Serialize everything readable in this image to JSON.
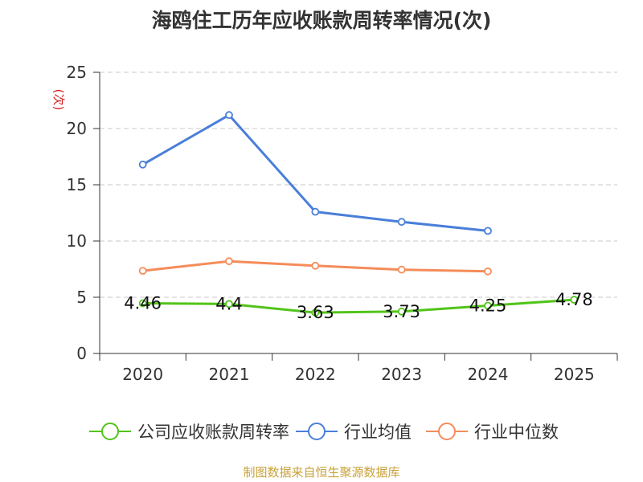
{
  "title": "海鸥住工历年应收账款周转率情况(次)",
  "source": "制图数据来自恒生聚源数据库",
  "chart_data": {
    "type": "line",
    "title": "海鸥住工历年应收账款周转率情况(次)",
    "ylabel": "(次)",
    "ylim": [
      0,
      25
    ],
    "yticks": [
      0,
      5,
      10,
      15,
      20,
      25
    ],
    "categories": [
      "2020",
      "2021",
      "2022",
      "2023",
      "2024",
      "2025"
    ],
    "grid": true,
    "legend_position": "bottom",
    "series": [
      {
        "name": "公司应收账款周转率",
        "color": "#52c41a",
        "values": [
          4.46,
          4.4,
          3.63,
          3.73,
          4.25,
          4.78
        ],
        "labels": [
          "4.46",
          "4.4",
          "3.63",
          "3.73",
          "4.25",
          "4.78"
        ]
      },
      {
        "name": "行业均值",
        "color": "#4a7fd9",
        "values": [
          16.8,
          21.2,
          12.6,
          11.7,
          10.9,
          null
        ]
      },
      {
        "name": "行业中位数",
        "color": "#f58c5a",
        "values": [
          7.35,
          8.2,
          7.8,
          7.45,
          7.3,
          null
        ]
      }
    ]
  }
}
